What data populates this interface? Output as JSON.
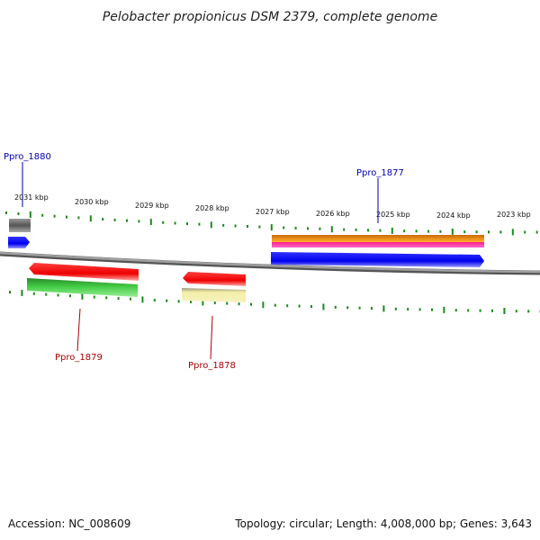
{
  "title": "Pelobacter propionicus DSM 2379, complete genome",
  "scale_labels": [
    "2031 kbp",
    "2030 kbp",
    "2029 kbp",
    "2028 kbp",
    "2027 kbp",
    "2026 kbp",
    "2025 kbp",
    "2024 kbp",
    "2023 kbp"
  ],
  "gene_labels": {
    "ppro_1880": "Ppro_1880",
    "ppro_1877": "Ppro_1877",
    "ppro_1879": "Ppro_1879",
    "ppro_1878": "Ppro_1878"
  },
  "footer": {
    "accession": "Accession: NC_008609",
    "summary": "Topology: circular; Length: 4,008,000 bp; Genes: 3,643"
  },
  "colors": {
    "backbone": "#8c8c8c",
    "tick": "#1a8a1a",
    "gene_blue": "#0000ff",
    "gene_red": "#ff0000",
    "gene_green": "#33cc33",
    "gene_orange": "#ff9900",
    "gene_magenta": "#ff33aa",
    "gene_gray": "#666666",
    "gene_khaki": "#eee8a0",
    "label_blue": "#0000aa",
    "label_red": "#aa0000"
  }
}
